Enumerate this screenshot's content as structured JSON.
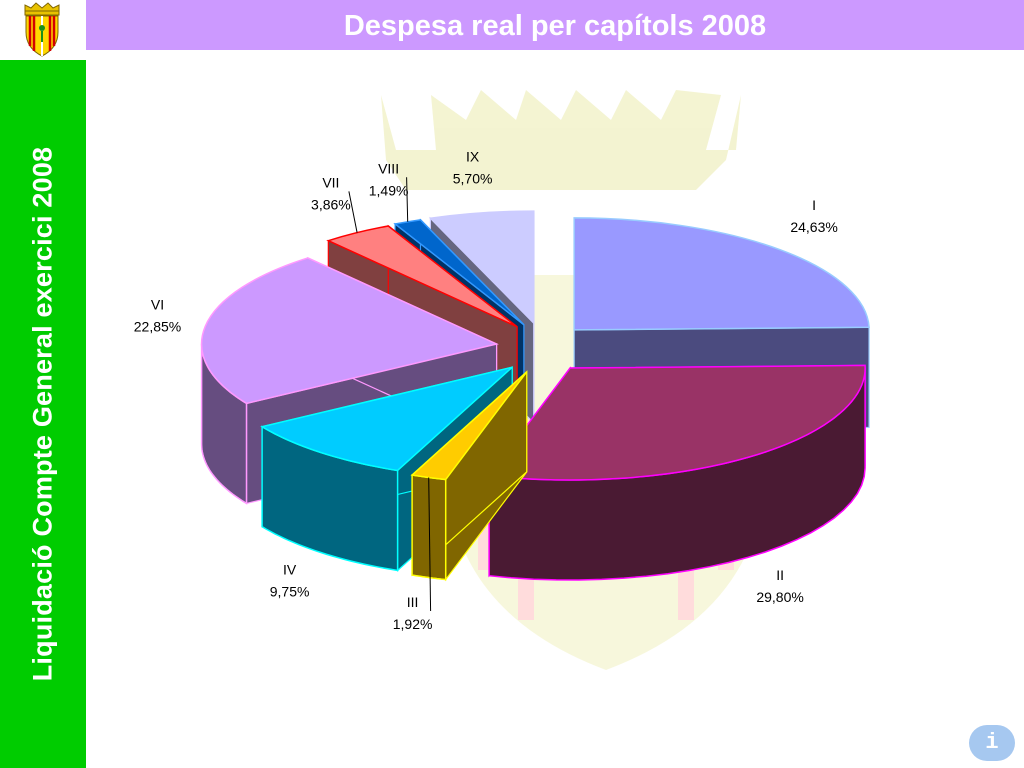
{
  "header": {
    "title": "Despesa real per capítols 2008"
  },
  "sidebar": {
    "title": "Liquidació Compte General exercici 2008"
  },
  "info_button": {
    "label": "i"
  },
  "colors": {
    "header_bg": "#cc99ff",
    "sidebar_bg": "#00cc00",
    "info_button_bg": "#a6c8f0"
  },
  "chart_data": {
    "type": "pie",
    "style": "3d-exploded",
    "title": "",
    "slices": [
      {
        "name": "I",
        "value": 24.63,
        "label": "24,63%",
        "color": "#9999ff",
        "side_color": "#4b4b7f",
        "edge_color": "#99ccff"
      },
      {
        "name": "II",
        "value": 29.8,
        "label": "29,80%",
        "color": "#993366",
        "side_color": "#4a1a33",
        "edge_color": "#ff00ff"
      },
      {
        "name": "III",
        "value": 1.92,
        "label": "1,92%",
        "color": "#ffcc00",
        "side_color": "#806600",
        "edge_color": "#ffff00"
      },
      {
        "name": "IV",
        "value": 9.75,
        "label": "9,75%",
        "color": "#00ccff",
        "side_color": "#006680",
        "edge_color": "#00ffff"
      },
      {
        "name": "VI",
        "value": 22.85,
        "label": "22,85%",
        "color": "#cc99ff",
        "side_color": "#664d80",
        "edge_color": "#ff99ff"
      },
      {
        "name": "VII",
        "value": 3.86,
        "label": "3,86%",
        "color": "#ff8080",
        "side_color": "#804040",
        "edge_color": "#ff0000"
      },
      {
        "name": "VIII",
        "value": 1.49,
        "label": "1,49%",
        "color": "#0066cc",
        "side_color": "#003366",
        "edge_color": "#3399ff"
      },
      {
        "name": "IX",
        "value": 5.7,
        "label": "5,70%",
        "color": "#ccccff",
        "side_color": "#666680",
        "edge_color": "#ccccff"
      }
    ]
  }
}
